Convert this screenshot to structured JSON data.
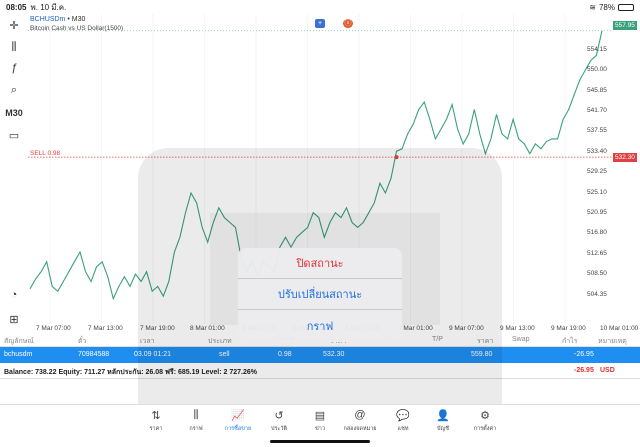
{
  "status": {
    "time": "08:05",
    "date": "พ. 10 มี.ค.",
    "battery": "78%"
  },
  "toolbar": {
    "tf": "M30"
  },
  "chart": {
    "symbol": "BCHUSDm",
    "timeframe": "M30",
    "title_sep": "•",
    "subtitle": "Bitcoin Cash vs US Dollar(1500)",
    "sell_label": "SELL 0.98",
    "price_tag": "557.95",
    "sell_tag": "532.30",
    "btn_add": "+",
    "btn_trade": "ⓢ"
  },
  "chart_data": {
    "type": "line",
    "x_ticks": [
      "7 Mar 07:00",
      "7 Mar 13:00",
      "7 Mar 19:00",
      "8 Mar 01:00",
      "8 Mar 07:00",
      "8 Mar 13:00",
      "8 Mar 19:00",
      "9 Mar 01:00",
      "9 Mar 07:00",
      "9 Mar 13:00",
      "9 Mar 19:00",
      "10 Mar 01:00"
    ],
    "y_ticks": [
      "554.15",
      "550.00",
      "545.85",
      "541.70",
      "537.55",
      "533.40",
      "529.25",
      "525.10",
      "520.95",
      "516.80",
      "512.65",
      "508.50",
      "504.35"
    ],
    "ylim": [
      501.2,
      560.2
    ],
    "color": "#3aa27a",
    "values": [
      505.5,
      507.5,
      509,
      511,
      506,
      505,
      507,
      509,
      511,
      513,
      509,
      507,
      510,
      511,
      508,
      503.5,
      506,
      508,
      506,
      508.5,
      507,
      509,
      505,
      506,
      504,
      507,
      513,
      516,
      521,
      525,
      523,
      518,
      515,
      519,
      522,
      520,
      519,
      518,
      512,
      509,
      511,
      508,
      511,
      510,
      509,
      514,
      516,
      514,
      516,
      517,
      518,
      521,
      520,
      516,
      519,
      521,
      520,
      522,
      519,
      518,
      519,
      521,
      523,
      527,
      525,
      528,
      533.5,
      534,
      537,
      539,
      542,
      543.5,
      540,
      536,
      538,
      540,
      543,
      538,
      535,
      537,
      542,
      537,
      533,
      536,
      541,
      537,
      536,
      540,
      536,
      535,
      533,
      535,
      534,
      535.5,
      536,
      536,
      540,
      542,
      545,
      548,
      550,
      552,
      553,
      558
    ]
  },
  "columns": [
    "สัญลักษณ์",
    "ตั๋ว",
    "เวลา",
    "ประเภท",
    "volume",
    "ราคา",
    "S/L",
    "T/P",
    "ราคา",
    "Swap",
    "กำไร",
    "หมายเหตุ"
  ],
  "trade": {
    "symbol": "bchusdm",
    "ticket": "70984588",
    "time": "03.09 01:21",
    "type": "sell",
    "volume": "0.98",
    "open_price": "532.30",
    "price": "559.80",
    "profit": "-26.95"
  },
  "summary": {
    "text": "Balance: 738.22  Equity: 711.27  หลักประกัน: 26.08  ฟรี: 685.19  Level: 2 727.26%",
    "profit": "-26.95",
    "currency": "USD"
  },
  "dialog": {
    "close": "ปิดสถานะ",
    "modify": "ปรับเปลี่ยนสถานะ",
    "chart": "กราฟ"
  },
  "nav": [
    {
      "label": "ราคา",
      "icon": "⇅"
    },
    {
      "label": "กราฟ",
      "icon": "⫼"
    },
    {
      "label": "การซื้อขาย",
      "icon": "📈"
    },
    {
      "label": "ประวัติ",
      "icon": "↺"
    },
    {
      "label": "ข่าว",
      "icon": "▤"
    },
    {
      "label": "กล่องจดหมาย",
      "icon": "@"
    },
    {
      "label": "แชท",
      "icon": "💬"
    },
    {
      "label": "บัญชี",
      "icon": "👤"
    },
    {
      "label": "การตั้งค่า",
      "icon": "⚙"
    }
  ]
}
